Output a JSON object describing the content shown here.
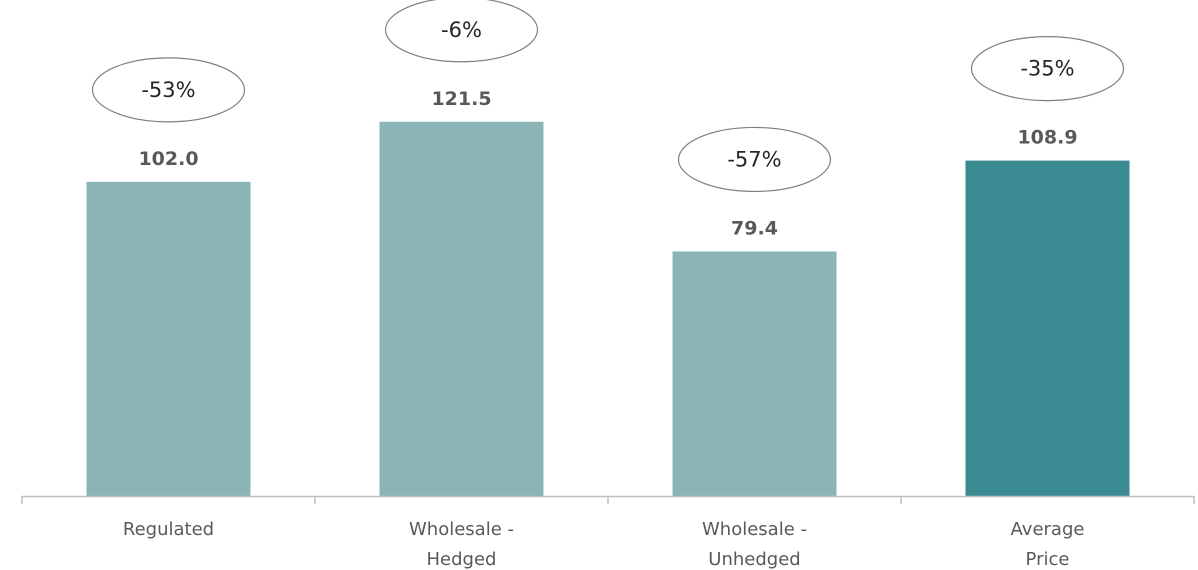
{
  "chart_data": {
    "type": "bar",
    "categories": [
      [
        "Regulated"
      ],
      [
        "Wholesale -",
        "Hedged"
      ],
      [
        "Wholesale -",
        "Unhedged"
      ],
      [
        "Average",
        "Price"
      ]
    ],
    "values": [
      102.0,
      121.5,
      79.4,
      108.9
    ],
    "value_labels": [
      "102.0",
      "121.5",
      "79.4",
      "108.9"
    ],
    "annotations": [
      "-53%",
      "-6%",
      "-57%",
      "-35%"
    ],
    "bar_colors": [
      "#8bb4b6",
      "#8bb4b6",
      "#8bb4b6",
      "#3b8a91"
    ],
    "axis_color": "#bfbfbf",
    "ylim": [
      0,
      130
    ],
    "grid": false,
    "legend": "none",
    "title": "",
    "xlabel": "",
    "ylabel": ""
  }
}
